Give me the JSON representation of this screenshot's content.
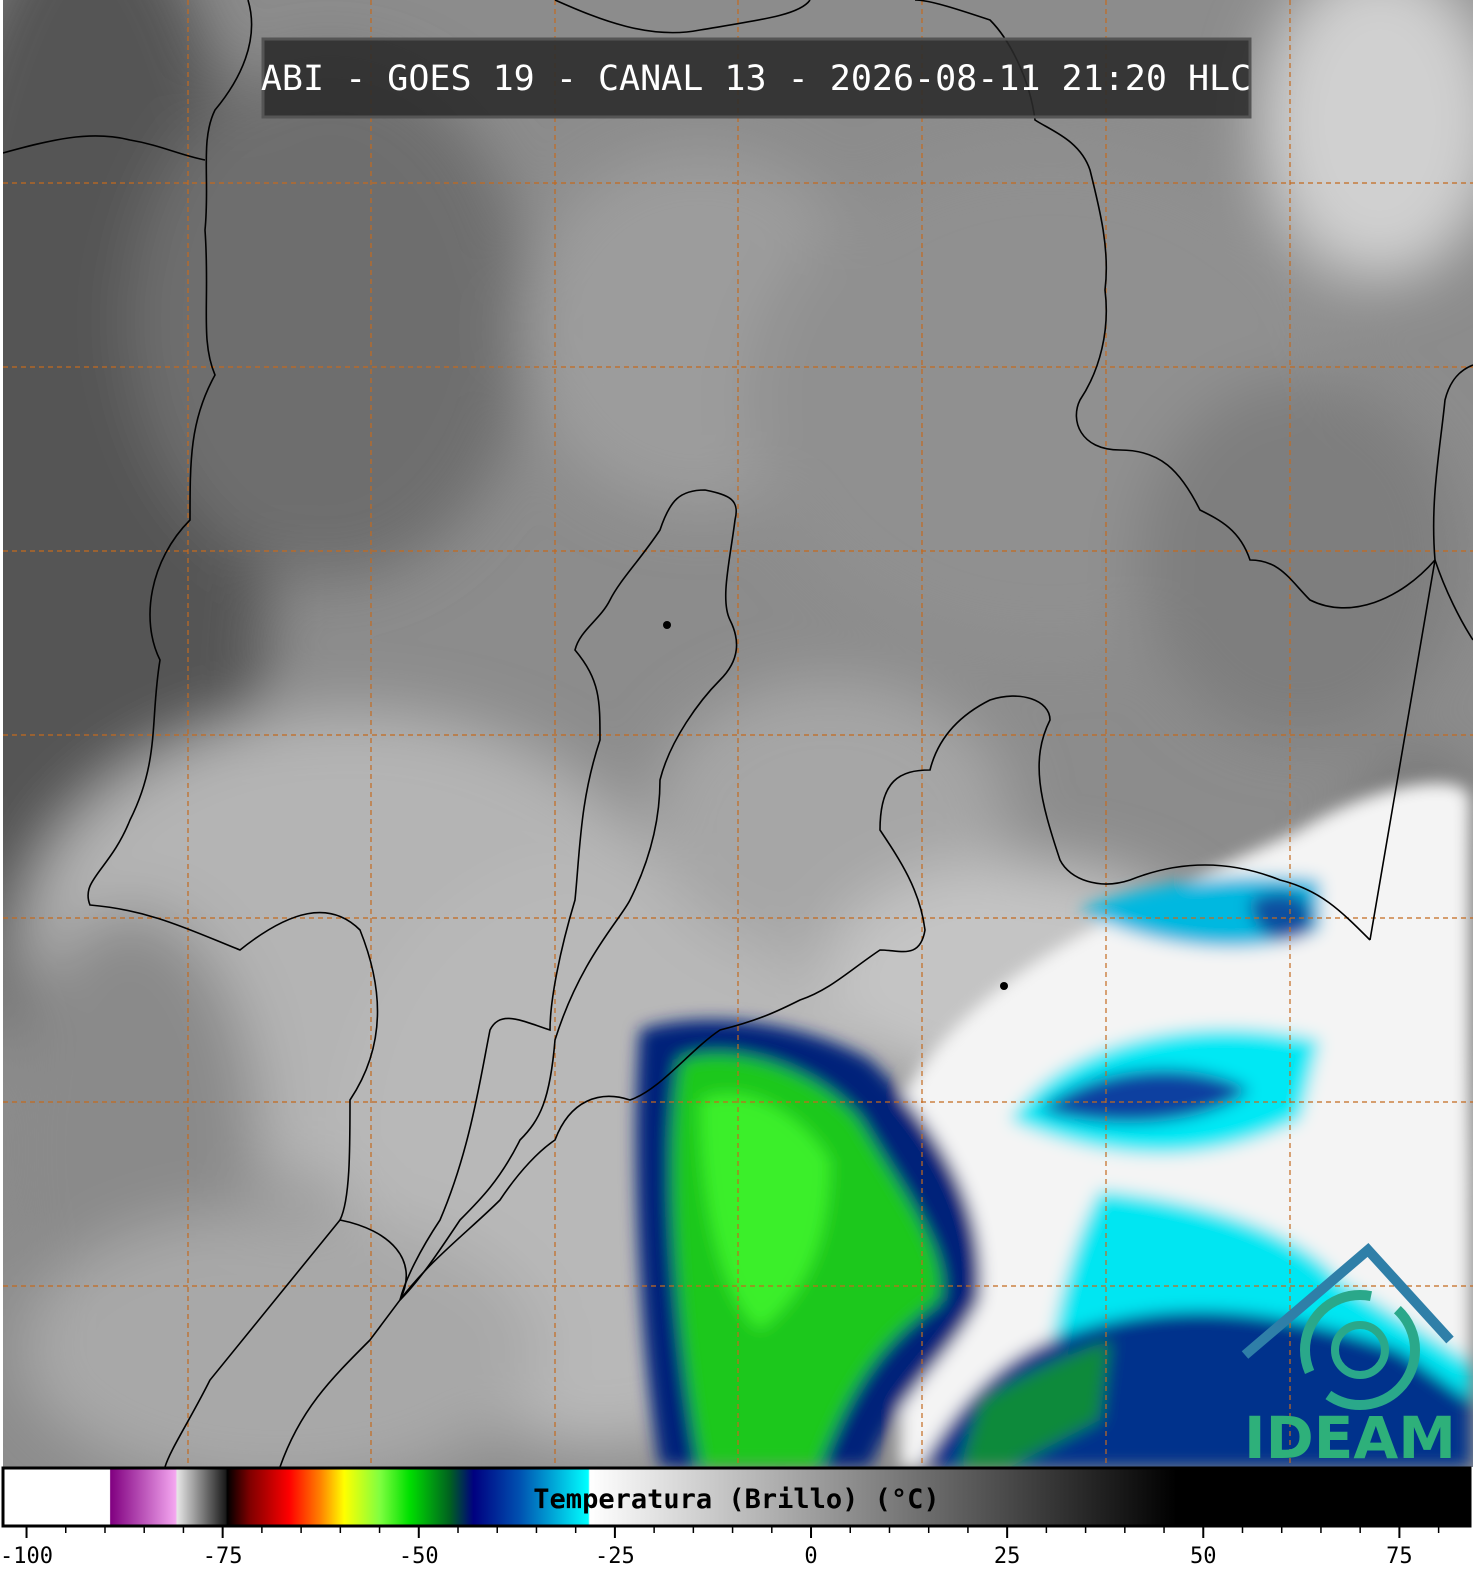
{
  "header": {
    "title": "ABI - GOES 19 - CANAL 13 - 2026-08-11 21:20 HLC"
  },
  "logo": {
    "text": "IDEAM"
  },
  "chart_data": {
    "type": "colorbar",
    "title": "Temperatura (Brillo) (°C)",
    "xlim": [
      -103,
      84
    ],
    "xticks": [
      -100,
      -75,
      -50,
      -25,
      0,
      25,
      50,
      75
    ],
    "xminorticks": [
      -95,
      -90,
      -85,
      -80,
      -70,
      -65,
      -60,
      -55,
      -45,
      -40,
      -35,
      -30,
      -20,
      -15,
      -10,
      -5,
      5,
      10,
      15,
      20,
      30,
      35,
      40,
      45,
      55,
      60,
      65,
      70,
      80
    ],
    "colormap": [
      {
        "value": -103,
        "color": "#ffffff"
      },
      {
        "value": -89.4,
        "color": "#ffffff"
      },
      {
        "value": -89.3,
        "color": "#800080"
      },
      {
        "value": -81,
        "color": "#f4a6f0"
      },
      {
        "value": -80.8,
        "color": "#e6e6e6"
      },
      {
        "value": -74.6,
        "color": "#1a1a1a"
      },
      {
        "value": -74.4,
        "color": "#000000"
      },
      {
        "value": -71.5,
        "color": "#800000"
      },
      {
        "value": -66.5,
        "color": "#ff0000"
      },
      {
        "value": -62.6,
        "color": "#ff8000"
      },
      {
        "value": -59.5,
        "color": "#ffff00"
      },
      {
        "value": -55,
        "color": "#80ff40"
      },
      {
        "value": -51.2,
        "color": "#00e000"
      },
      {
        "value": -46,
        "color": "#006020"
      },
      {
        "value": -43,
        "color": "#000080"
      },
      {
        "value": -37.2,
        "color": "#0050b0"
      },
      {
        "value": -28.4,
        "color": "#00ffff"
      },
      {
        "value": -28.2,
        "color": "#ffffff"
      },
      {
        "value": 46.6,
        "color": "#000000"
      },
      {
        "value": 84,
        "color": "#000000"
      }
    ]
  }
}
